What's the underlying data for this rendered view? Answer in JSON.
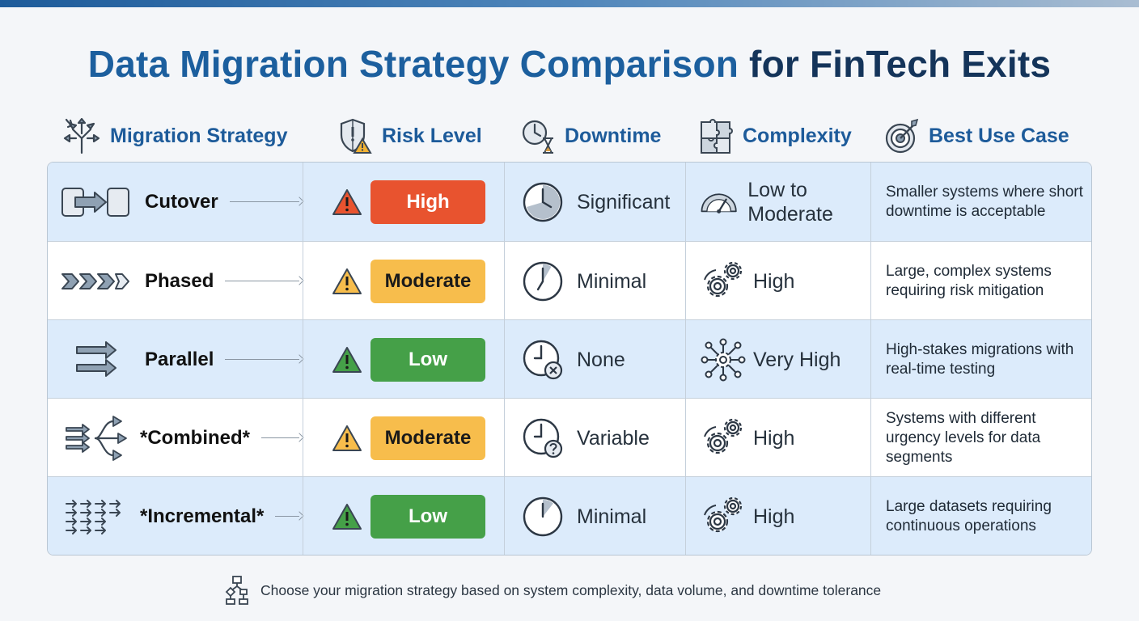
{
  "title": {
    "part1": "Data Migration Strategy Comparison",
    "part2": "for FinTech Exits"
  },
  "headers": {
    "strategy": "Migration Strategy",
    "risk": "Risk Level",
    "downtime": "Downtime",
    "complexity": "Complexity",
    "use_case": "Best Use Case"
  },
  "rows": [
    {
      "strategy": "Cutover",
      "risk": "High",
      "risk_color": "#e8532f",
      "downtime": "Significant",
      "complexity": "Low to Moderate",
      "use_case": "Smaller systems where short downtime is acceptable"
    },
    {
      "strategy": "Phased",
      "risk": "Moderate",
      "risk_color": "#f7bd4c",
      "downtime": "Minimal",
      "complexity": "High",
      "use_case": "Large, complex systems requiring risk mitigation"
    },
    {
      "strategy": "Parallel",
      "risk": "Low",
      "risk_color": "#45a048",
      "downtime": "None",
      "complexity": "Very High",
      "use_case": "High-stakes migrations with real-time testing"
    },
    {
      "strategy": "*Combined*",
      "risk": "Moderate",
      "risk_color": "#f7bd4c",
      "downtime": "Variable",
      "complexity": "High",
      "use_case": "Systems with different urgency levels for data segments"
    },
    {
      "strategy": "*Incremental*",
      "risk": "Low",
      "risk_color": "#45a048",
      "downtime": "Minimal",
      "complexity": "High",
      "use_case": "Large datasets requiring continuous operations"
    }
  ],
  "footer": "Choose your migration strategy based on system complexity, data volume, and downtime tolerance",
  "colors": {
    "accent": "#1d5b9a",
    "title_dark": "#14345a",
    "row_shade": "#dcebfb"
  }
}
